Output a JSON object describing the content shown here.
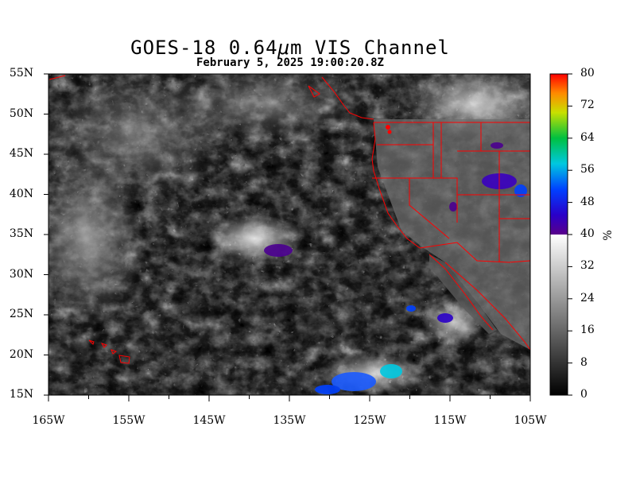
{
  "header": {
    "title_prefix": "GOES-18  0.64",
    "title_mu": "μ",
    "title_suffix": "m VIS Channel",
    "subtitle": "February  5,  2025 19:00:20.8Z"
  },
  "map": {
    "lat_labels": [
      "55N",
      "50N",
      "45N",
      "40N",
      "35N",
      "30N",
      "25N",
      "20N",
      "15N"
    ],
    "lon_labels": [
      "165W",
      "155W",
      "145W",
      "135W",
      "125W",
      "115W",
      "105W"
    ],
    "lat_range": [
      15,
      55
    ],
    "lon_range": [
      -165,
      -105
    ],
    "boundary_color": "#ff0000"
  },
  "colorbar": {
    "tick_labels": [
      "80",
      "72",
      "64",
      "56",
      "48",
      "40",
      "32",
      "24",
      "16",
      "8",
      "0"
    ],
    "unit": "%",
    "range": [
      0,
      80
    ]
  }
}
